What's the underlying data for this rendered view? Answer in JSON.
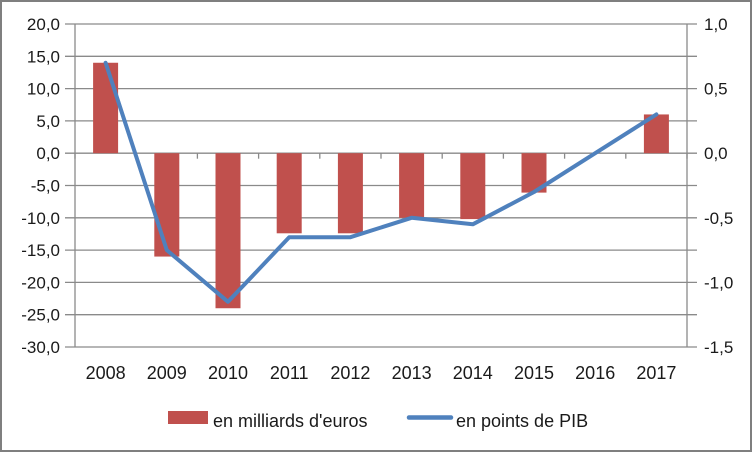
{
  "chart_data": {
    "type": "combo",
    "title": "",
    "xlabel": "",
    "ylabel_left": "",
    "ylabel_right": "",
    "categories": [
      "2008",
      "2009",
      "2010",
      "2011",
      "2012",
      "2013",
      "2014",
      "2015",
      "2016",
      "2017"
    ],
    "series": [
      {
        "name": "en milliards d'euros",
        "type": "bar",
        "axis": "left",
        "color": "#C0504D",
        "values": [
          14.0,
          -16.0,
          -24.0,
          -12.4,
          -12.4,
          -10.0,
          -10.2,
          -6.1,
          0.0,
          6.0
        ]
      },
      {
        "name": "en points de PIB",
        "type": "line",
        "axis": "right",
        "color": "#4F81BD",
        "values": [
          0.7,
          -0.75,
          -1.15,
          -0.65,
          -0.65,
          -0.5,
          -0.55,
          -0.3,
          0.0,
          0.3
        ]
      }
    ],
    "y_left": {
      "lim": [
        -30,
        20
      ],
      "step": 5,
      "tick_values": [
        20,
        15,
        10,
        5,
        0,
        -5,
        -10,
        -15,
        -20,
        -25,
        -30
      ],
      "tick_labels": [
        "20,0",
        "15,0",
        "10,0",
        "5,0",
        "0,0",
        "-5,0",
        "-10,0",
        "-15,0",
        "-20,0",
        "-25,0",
        "-30,0"
      ]
    },
    "y_right": {
      "lim": [
        -1.5,
        1.0
      ],
      "step": 0.5,
      "tick_values": [
        1.0,
        0.5,
        0.0,
        -0.5,
        -1.0,
        -1.5
      ],
      "tick_labels": [
        "1,0",
        "0,5",
        "0,0",
        "-0,5",
        "-1,0",
        "-1,5"
      ]
    },
    "grid": true,
    "legend_position": "bottom"
  },
  "legend": {
    "items": [
      {
        "label": "en milliards d'euros",
        "swatch": "bar-swatch",
        "color": "#C0504D"
      },
      {
        "label": "en points de PIB",
        "swatch": "line-swatch",
        "color": "#4F81BD"
      }
    ]
  },
  "colors": {
    "bar": "#C0504D",
    "line": "#4F81BD",
    "gridline": "#8A8A8A",
    "axis": "#8A8A8A",
    "text": "#1A1A1A",
    "frame_border": "#7F7F7F",
    "background": "#FFFFFF"
  }
}
